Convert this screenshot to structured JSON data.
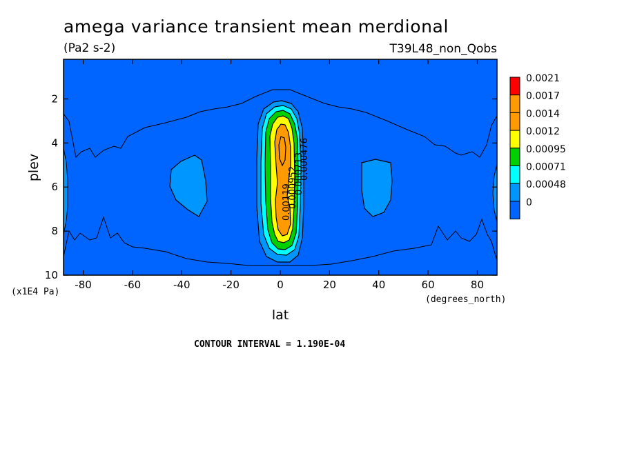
{
  "chart_data": {
    "type": "contour",
    "title": "amega variance transient mean merdional",
    "units": "(Pa2 s-2)",
    "dataset": "T39L48_non_Qobs",
    "xlabel": "lat",
    "x_units": "(degrees_north)",
    "ylabel": "plev",
    "y_units": "(x1E4 Pa)",
    "xlim": [
      -88,
      88
    ],
    "ylim": [
      10,
      0.2
    ],
    "x_ticks": [
      "-80",
      "-60",
      "-40",
      "-20",
      "0",
      "20",
      "40",
      "60",
      "80"
    ],
    "y_ticks": [
      "2",
      "4",
      "6",
      "8",
      "10"
    ],
    "legend_levels": [
      "0.0021",
      "0.0017",
      "0.0014",
      "0.0012",
      "0.00095",
      "0.00071",
      "0.00048",
      "0"
    ],
    "legend_colors": [
      "#ff0000",
      "#ff9a00",
      "#ff9a00",
      "#ffff00",
      "#00d000",
      "#00ffff",
      "#0096ff",
      "#0064ff"
    ],
    "contour_labels": [
      "0.000476",
      "0.000713",
      "0.000952",
      "0.00119"
    ],
    "contour_interval": "CONTOUR INTERVAL = 1.190E-04",
    "fill_colors": {
      "background": "#0064ff",
      "level1": "#0096ff",
      "level2": "#00ffff",
      "level3": "#00d000",
      "level4": "#ffff00",
      "level5": "#ff9a00"
    }
  }
}
